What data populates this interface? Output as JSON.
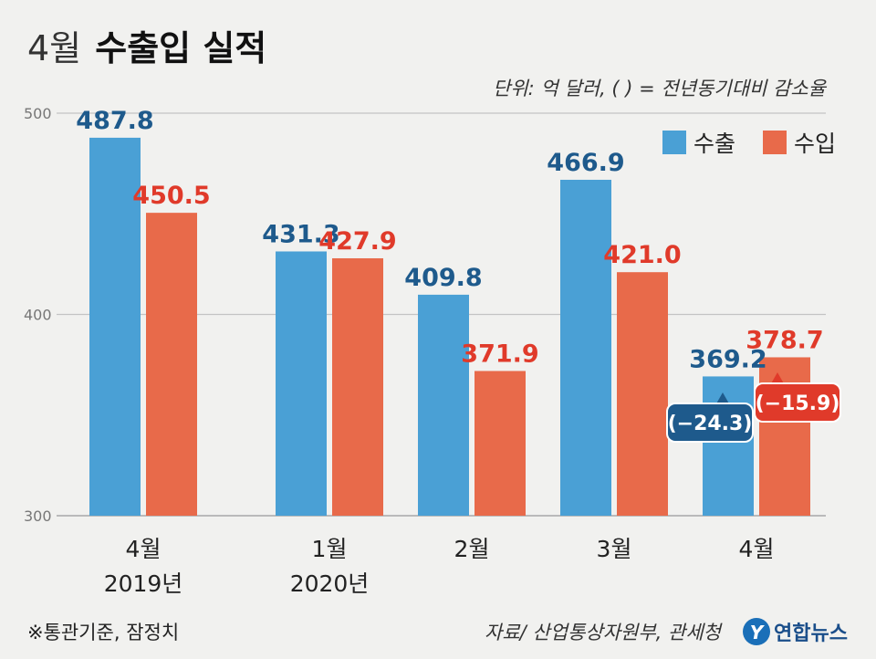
{
  "header": {
    "title_light": "4월",
    "title_bold": "수출입 실적",
    "unit_note": "단위: 억 달러, ( ) = 전년동기대비 감소율"
  },
  "footer": {
    "note": "※통관기준, 잠정치",
    "source": "자료/ 산업통상자원부, 관세청",
    "logo": "연합뉴스",
    "logo_mark": "Y"
  },
  "colors": {
    "export": "#4aa0d5",
    "import": "#e86a4a",
    "export_label": "#1e5a8c",
    "import_label": "#e03a2a",
    "callout_export": "#1e5a8c",
    "callout_import": "#e03a2a"
  },
  "chart_data": {
    "type": "bar",
    "categories": [
      {
        "line1": "4월",
        "line2": "2019년"
      },
      {
        "line1": "1월",
        "line2": "2020년"
      },
      {
        "line1": "2월",
        "line2": ""
      },
      {
        "line1": "3월",
        "line2": ""
      },
      {
        "line1": "4월",
        "line2": ""
      }
    ],
    "series": [
      {
        "name": "수출",
        "values": [
          487.8,
          431.3,
          409.8,
          466.9,
          369.2
        ],
        "labels": [
          "487.8",
          "431.3",
          "409.8",
          "466.9",
          "369.2"
        ]
      },
      {
        "name": "수입",
        "values": [
          450.5,
          427.9,
          371.9,
          421.0,
          378.7
        ],
        "labels": [
          "450.5",
          "427.9",
          "371.9",
          "421.0",
          "378.7"
        ]
      }
    ],
    "ylim": [
      300,
      500
    ],
    "yticks": [
      {
        "value": 300,
        "label": "300"
      },
      {
        "value": 400,
        "label": "400"
      },
      {
        "value": 500,
        "label": "500"
      }
    ],
    "legend_position": "top-right",
    "annotations": [
      {
        "series": "수출",
        "category_index": 4,
        "text": "(−24.3)"
      },
      {
        "series": "수입",
        "category_index": 4,
        "text": "(−15.9)"
      }
    ]
  }
}
